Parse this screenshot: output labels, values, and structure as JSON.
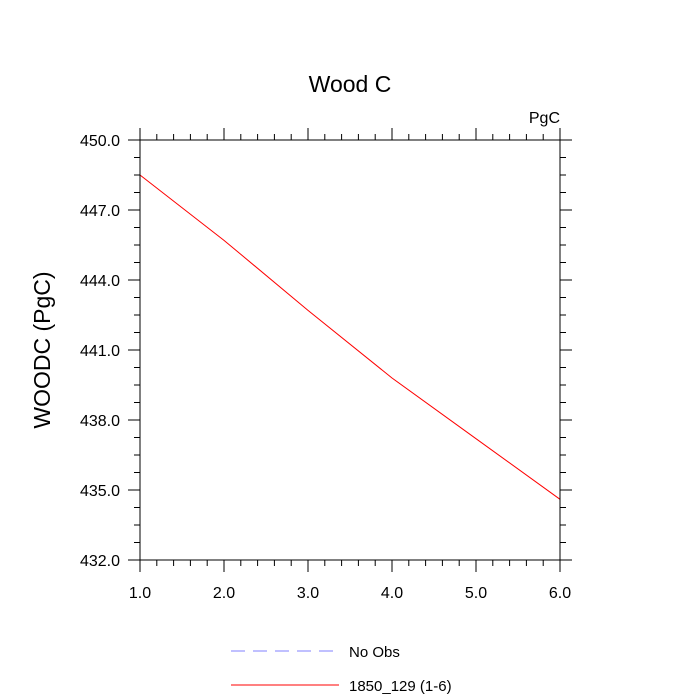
{
  "chart_data": {
    "type": "line",
    "title": "Wood C",
    "units_label": "PgC",
    "xlabel": "",
    "ylabel": "WOODC  (PgC)",
    "xlim": [
      1.0,
      6.0
    ],
    "ylim": [
      432.0,
      450.0
    ],
    "x_ticks": [
      "1.0",
      "2.0",
      "3.0",
      "4.0",
      "5.0",
      "6.0"
    ],
    "y_ticks": [
      "432.0",
      "435.0",
      "438.0",
      "441.0",
      "444.0",
      "447.0",
      "450.0"
    ],
    "grid": false,
    "legend_position": "bottom",
    "series": [
      {
        "name": "No Obs",
        "color": "#8080ff",
        "dash": "dashed",
        "x": [],
        "y": []
      },
      {
        "name": "1850_129 (1-6)",
        "color": "#ff0000",
        "dash": "solid",
        "x": [
          1,
          2,
          3,
          4,
          5,
          6
        ],
        "y": [
          448.5,
          445.7,
          442.7,
          439.8,
          437.2,
          434.6
        ]
      }
    ]
  }
}
